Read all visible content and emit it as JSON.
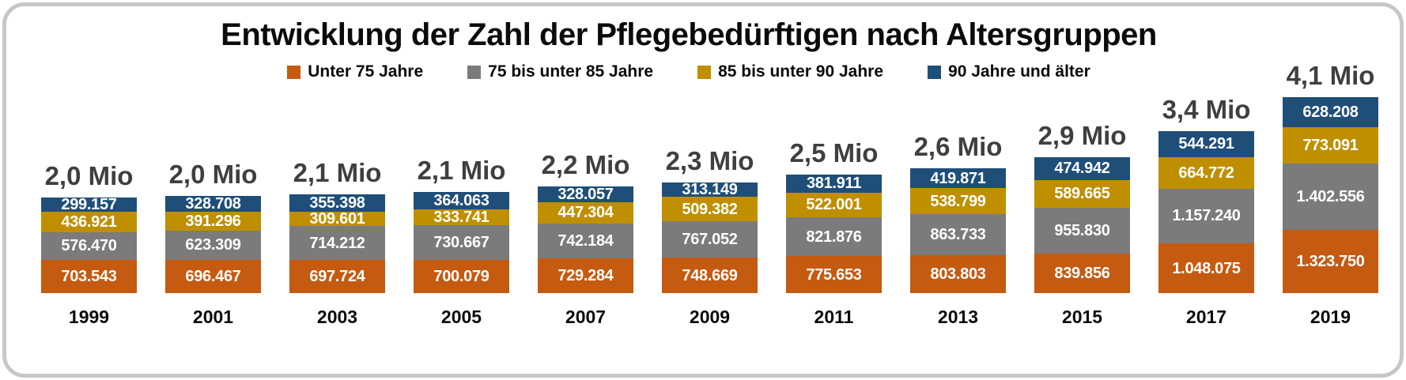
{
  "title": "Entwicklung der Zahl der Pflegebedürftigen nach Altersgruppen",
  "legend": {
    "items": [
      {
        "label": "Unter 75 Jahre",
        "color": "#C55A11"
      },
      {
        "label": "75 bis unter 85 Jahre",
        "color": "#7B7B7B"
      },
      {
        "label": "85 bis unter 90 Jahre",
        "color": "#BF8F00"
      },
      {
        "label": "90 Jahre und älter",
        "color": "#1F4E79"
      }
    ]
  },
  "chart_data": {
    "type": "bar",
    "stacked": true,
    "legend_position": "top",
    "grid": false,
    "axes": "none (only category labels, values printed on segments)",
    "categories": [
      "1999",
      "2001",
      "2003",
      "2005",
      "2007",
      "2009",
      "2011",
      "2013",
      "2015",
      "2017",
      "2019"
    ],
    "stack_order_bottom_to_top": [
      "Unter 75 Jahre",
      "75 bis unter 85 Jahre",
      "85 bis unter 90 Jahre",
      "90 Jahre und älter"
    ],
    "series": [
      {
        "name": "Unter 75 Jahre",
        "color": "#C55A11",
        "values": [
          703543,
          696467,
          697724,
          700079,
          729284,
          748669,
          775653,
          803803,
          839856,
          1048075,
          1323750
        ],
        "labels": [
          "703.543",
          "696.467",
          "697.724",
          "700.079",
          "729.284",
          "748.669",
          "775.653",
          "803.803",
          "839.856",
          "1.048.075",
          "1.323.750"
        ]
      },
      {
        "name": "75 bis unter 85 Jahre",
        "color": "#7B7B7B",
        "values": [
          576470,
          623309,
          714212,
          730667,
          742184,
          767052,
          821876,
          863733,
          955830,
          1157240,
          1402556
        ],
        "labels": [
          "576.470",
          "623.309",
          "714.212",
          "730.667",
          "742.184",
          "767.052",
          "821.876",
          "863.733",
          "955.830",
          "1.157.240",
          "1.402.556"
        ]
      },
      {
        "name": "85 bis unter 90 Jahre",
        "color": "#BF8F00",
        "values": [
          436921,
          391296,
          309601,
          333741,
          447304,
          509382,
          522001,
          538799,
          589665,
          664772,
          773091
        ],
        "labels": [
          "436.921",
          "391.296",
          "309.601",
          "333.741",
          "447.304",
          "509.382",
          "522.001",
          "538.799",
          "589.665",
          "664.772",
          "773.091"
        ]
      },
      {
        "name": "90 Jahre und älter",
        "color": "#1F4E79",
        "values": [
          299157,
          328708,
          355398,
          364063,
          328057,
          313149,
          381911,
          419871,
          474942,
          544291,
          628208
        ],
        "labels": [
          "299.157",
          "328.708",
          "355.398",
          "364.063",
          "328.057",
          "313.149",
          "381.911",
          "419.871",
          "474.942",
          "544.291",
          "628.208"
        ]
      }
    ],
    "totals": [
      "2,0 Mio",
      "2,0 Mio",
      "2,1 Mio",
      "2,1 Mio",
      "2,2 Mio",
      "2,3 Mio",
      "2,5 Mio",
      "2,6 Mio",
      "2,9 Mio",
      "3,4 Mio",
      "4,1 Mio"
    ],
    "colors": {
      "value_label": "#FFFFFF",
      "total_label": "#3F3F3F",
      "category_label": "#0B0B0B",
      "title": "#0B0B0B",
      "card_border": "#C7C7C7",
      "background": "#FFFFFF"
    }
  }
}
